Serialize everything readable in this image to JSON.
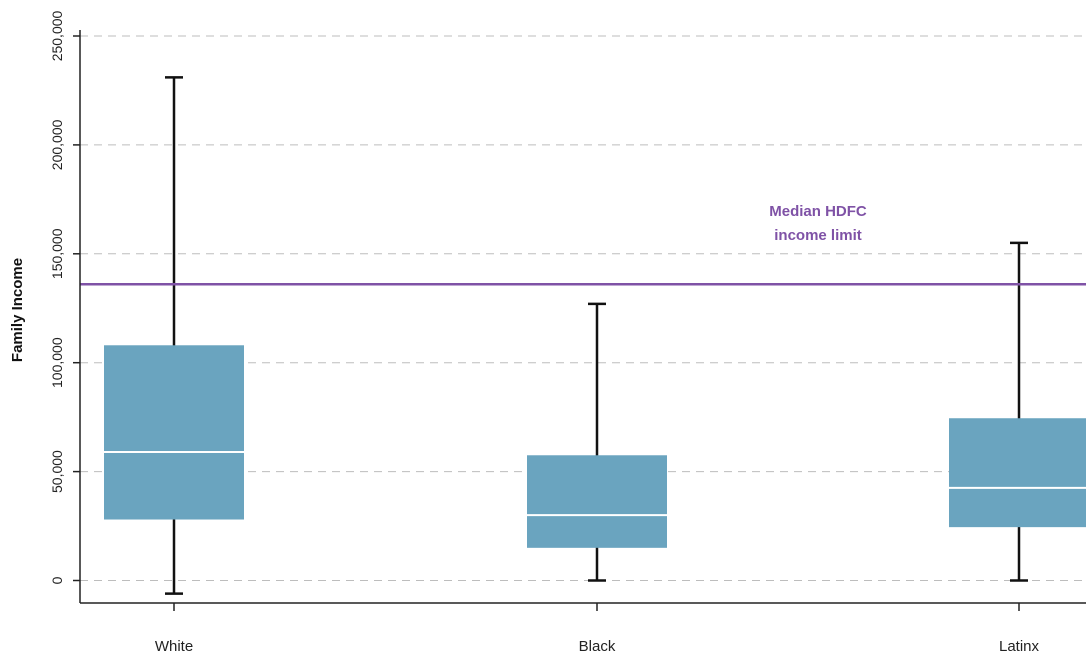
{
  "chart_data": {
    "type": "boxplot",
    "ylabel": "Family Income",
    "ylim": [
      -15000,
      250000
    ],
    "yticks": [
      0,
      50000,
      100000,
      150000,
      200000,
      250000
    ],
    "ytick_labels": [
      "0",
      "50,000",
      "100,000",
      "150,000",
      "200,000",
      "250,000"
    ],
    "grid": "horizontal-dashed",
    "categories": [
      "White",
      "Black",
      "Latinx"
    ],
    "boxes": [
      {
        "category": "White",
        "whisker_low": -6000,
        "q1": 28000,
        "median": 59000,
        "q3": 108000,
        "whisker_high": 231000
      },
      {
        "category": "Black",
        "whisker_low": 0,
        "q1": 15000,
        "median": 30000,
        "q3": 57500,
        "whisker_high": 127000
      },
      {
        "category": "Latinx",
        "whisker_low": 0,
        "q1": 24500,
        "median": 42500,
        "q3": 74500,
        "whisker_high": 155000
      }
    ],
    "reference_line": {
      "value": 136000,
      "label_line1": "Median HDFC",
      "label_line2": "income limit"
    },
    "colors": {
      "box": "#6aa4bf",
      "median": "#ffffff",
      "whisker": "#111111",
      "reference": "#7f52a6",
      "grid": "#bdbdbd",
      "axis": "#222222"
    }
  }
}
